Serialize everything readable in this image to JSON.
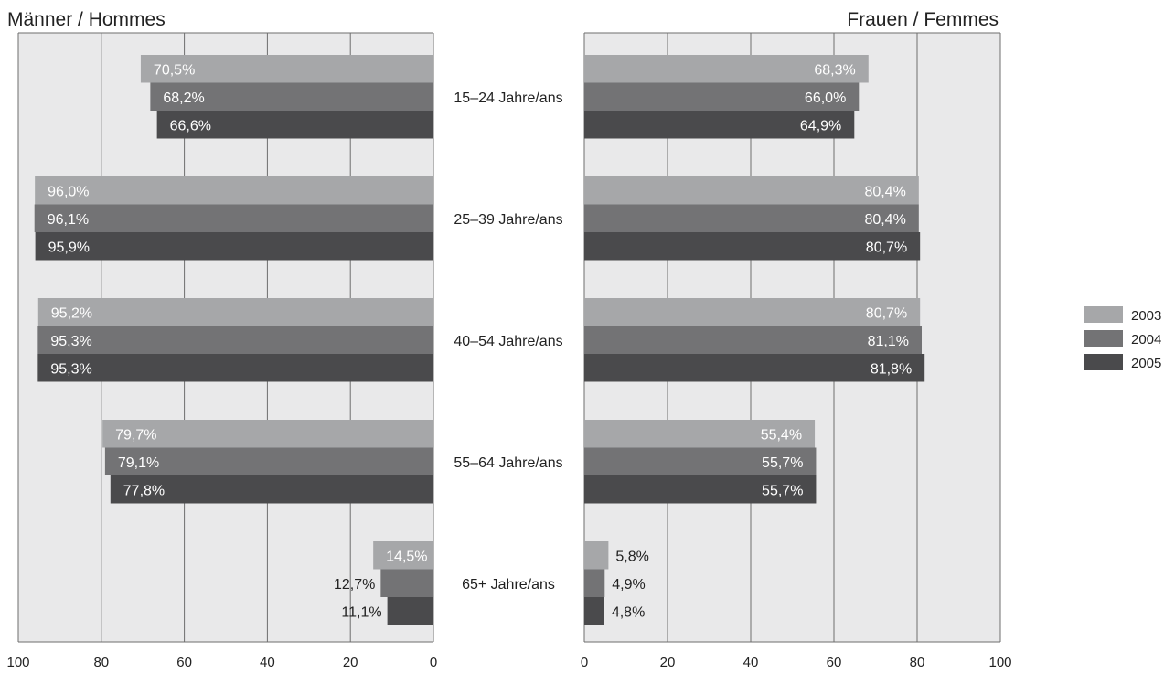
{
  "chart_data": {
    "type": "bar",
    "orientation": "horizontal",
    "layout": "back-to-back",
    "categories": [
      "15–24 Jahre/ans",
      "25–39 Jahre/ans",
      "40–54 Jahre/ans",
      "55–64 Jahre/ans",
      "65+ Jahre/ans"
    ],
    "panels": [
      {
        "title": "Männer / Hommes",
        "direction": "leftward",
        "xlim": [
          0,
          100
        ],
        "xticks": [
          "100",
          "80",
          "60",
          "40",
          "20",
          "0"
        ],
        "series": [
          {
            "name": "2003",
            "values": [
              70.5,
              96.0,
              95.2,
              79.7,
              14.5
            ],
            "labels": [
              "70,5%",
              "96,0%",
              "95,2%",
              "79,7%",
              "14,5%"
            ]
          },
          {
            "name": "2004",
            "values": [
              68.2,
              96.1,
              95.3,
              79.1,
              12.7
            ],
            "labels": [
              "68,2%",
              "96,1%",
              "95,3%",
              "79,1%",
              "12,7%"
            ]
          },
          {
            "name": "2005",
            "values": [
              66.6,
              95.9,
              95.3,
              77.8,
              11.1
            ],
            "labels": [
              "66,6%",
              "95,9%",
              "95,3%",
              "77,8%",
              "11,1%"
            ]
          }
        ]
      },
      {
        "title": "Frauen / Femmes",
        "direction": "rightward",
        "xlim": [
          0,
          100
        ],
        "xticks": [
          "0",
          "20",
          "40",
          "60",
          "80",
          "100"
        ],
        "series": [
          {
            "name": "2003",
            "values": [
              68.3,
              80.4,
              80.7,
              55.4,
              5.8
            ],
            "labels": [
              "68,3%",
              "80,4%",
              "80,7%",
              "55,4%",
              "5,8%"
            ]
          },
          {
            "name": "2004",
            "values": [
              66.0,
              80.4,
              81.1,
              55.7,
              4.9
            ],
            "labels": [
              "66,0%",
              "80,4%",
              "81,1%",
              "55,7%",
              "4,9%"
            ]
          },
          {
            "name": "2005",
            "values": [
              64.9,
              80.7,
              81.8,
              55.7,
              4.8
            ],
            "labels": [
              "64,9%",
              "80,7%",
              "81,8%",
              "55,7%",
              "4,8%"
            ]
          }
        ]
      }
    ],
    "legend": {
      "position": "right",
      "entries": [
        "2003",
        "2004",
        "2005"
      ]
    },
    "colors": {
      "2003": "#a6a7a9",
      "2004": "#737375",
      "2005": "#4a4a4c",
      "plot_background": "#e9e9ea",
      "gridline": "#6e6e6e"
    },
    "grid": true
  }
}
